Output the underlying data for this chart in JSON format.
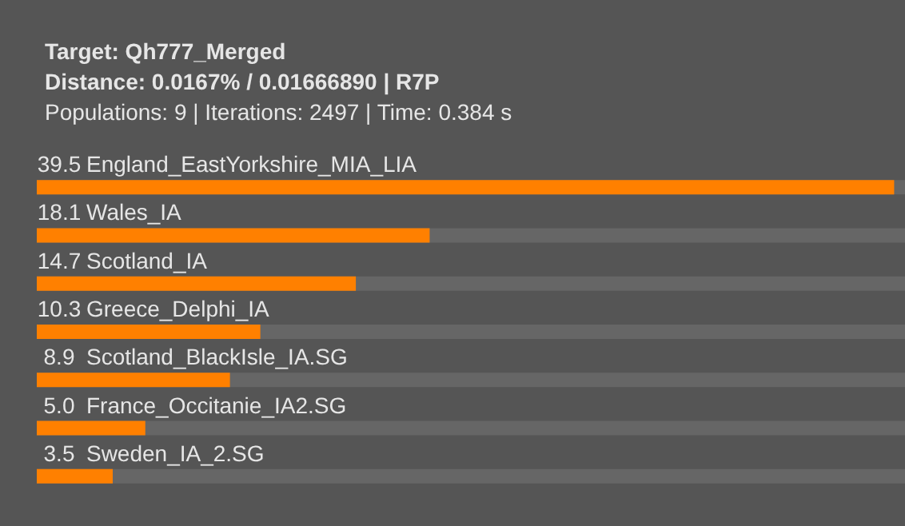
{
  "chart_data": {
    "type": "bar",
    "orientation": "horizontal",
    "value_labels": [
      "39.5",
      "18.1",
      "14.7",
      "10.3",
      "8.9",
      "5.0",
      "3.5"
    ],
    "title": "Target: Qh777_Merged",
    "subtitle": "Distance: 0.0167% / 0.01666890 | R7P",
    "annotations": [
      "Populations: 9 | Iterations: 2497 | Time: 0.384 s"
    ],
    "categories": [
      "England_EastYorkshire_MIA_LIA",
      "Wales_IA",
      "Scotland_IA",
      "Greece_Delphi_IA",
      "Scotland_BlackIsle_IA.SG",
      "France_Occitanie_IA2.SG",
      "Sweden_IA_2.SG"
    ],
    "values": [
      39.5,
      18.1,
      14.7,
      10.3,
      8.9,
      5.0,
      3.5
    ],
    "color": "#ff8000"
  }
}
